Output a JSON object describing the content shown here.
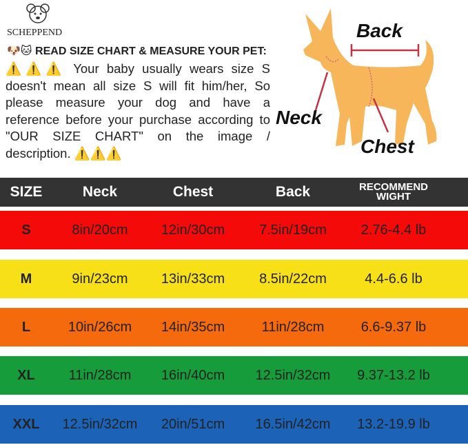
{
  "brand": "SCHEPPEND",
  "heading": "🐶🐱 READ SIZE CHART & MEASURE YOUR PET:",
  "notice": "⚠️⚠️⚠️ Your baby usually wears size S doesn't mean all size S will fit him/her, So please measure your dog and have a reference before your purchase according to \"OUR SIZE CHART\" on the image / description. ⚠️⚠️⚠️",
  "diagram": {
    "back": "Back",
    "neck": "Neck",
    "chest": "Chest"
  },
  "table": {
    "header": [
      "SIZE",
      "Neck",
      "Chest",
      "Back",
      "RECOMMEND WIGHT"
    ],
    "rows": [
      [
        "S",
        "8in/20cm",
        "12in/30cm",
        "7.5in/19cm",
        "2.76-4.4 lb"
      ],
      [
        "M",
        "9in/23cm",
        "13in/33cm",
        "8.5in/22cm",
        "4.4-6.6 lb"
      ],
      [
        "L",
        "10in/26cm",
        "14in/35cm",
        "11in/28cm",
        "6.6-9.37 lb"
      ],
      [
        "XL",
        "11in/28cm",
        "16in/40cm",
        "12.5in/32cm",
        "9.37-13.2 lb"
      ],
      [
        "XXL",
        "12.5in/32cm",
        "20in/51cm",
        "16.5in/42cm",
        "13.2-19.9 lb"
      ]
    ]
  }
}
